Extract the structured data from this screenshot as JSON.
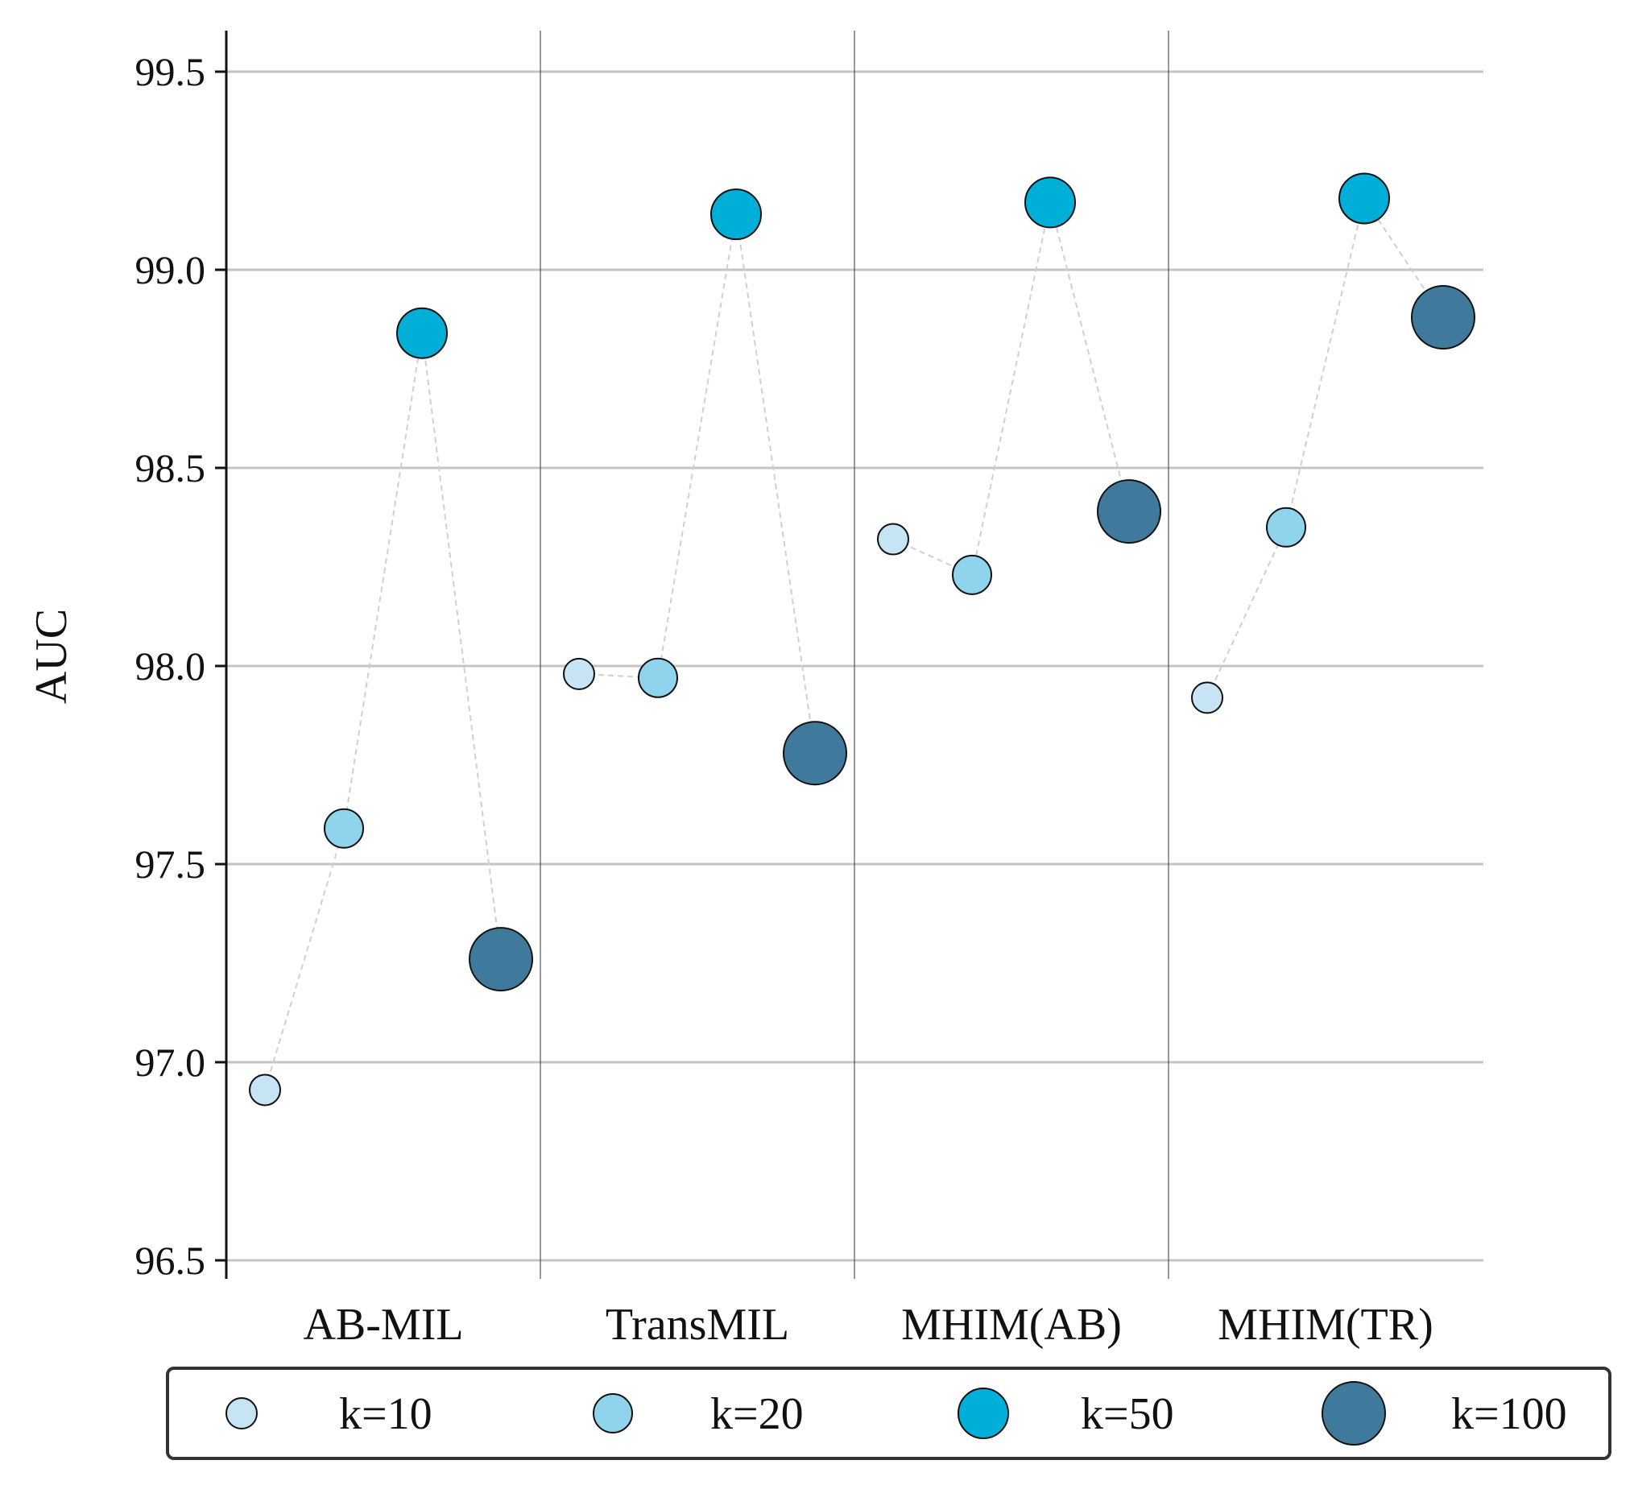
{
  "chart_data": {
    "type": "scatter",
    "title": "",
    "xlabel": "",
    "ylabel": "AUC",
    "ylim": [
      96.4,
      99.6
    ],
    "yticks": [
      "96.5",
      "97.0",
      "97.5",
      "98.0",
      "98.5",
      "99.0",
      "99.5"
    ],
    "ytick_values": [
      96.5,
      97.0,
      97.5,
      98.0,
      98.5,
      99.0,
      99.5
    ],
    "categories": [
      "AB-MIL",
      "TransMIL",
      "MHIM(AB)",
      "MHIM(TR)"
    ],
    "grid": "horizontal",
    "legend_position": "bottom",
    "series": [
      {
        "name": "k=10",
        "color": "#c6e4f4",
        "values": [
          96.93,
          97.98,
          98.32,
          97.92
        ]
      },
      {
        "name": "k=20",
        "color": "#8fd3ec",
        "values": [
          97.59,
          97.97,
          98.23,
          98.35
        ]
      },
      {
        "name": "k=50",
        "color": "#00afd8",
        "values": [
          98.84,
          99.14,
          99.17,
          99.18
        ]
      },
      {
        "name": "k=100",
        "color": "#3f7a9c",
        "values": [
          97.26,
          97.78,
          98.39,
          98.88
        ]
      }
    ]
  }
}
